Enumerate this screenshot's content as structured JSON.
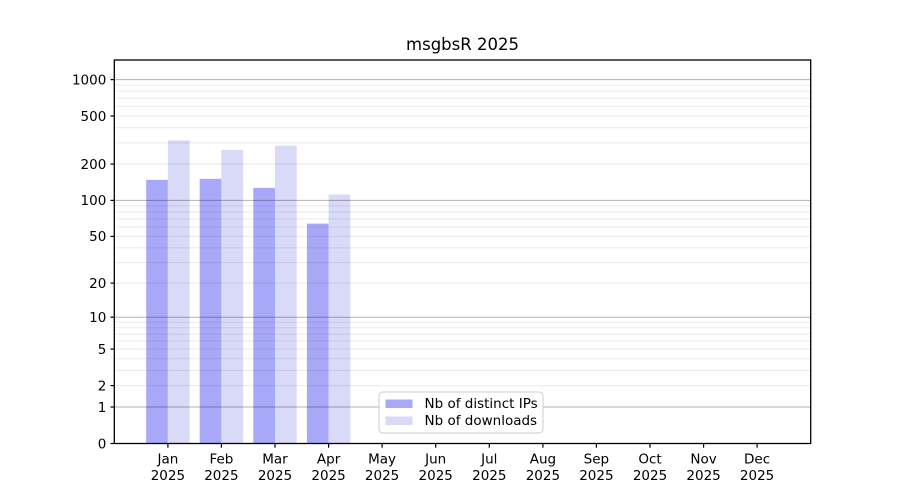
{
  "title": "msgbsR 2025",
  "chart_data": {
    "type": "bar",
    "title": "msgbsR 2025",
    "yscale": "log1p",
    "ymax": 1450,
    "yticks": [
      0,
      1,
      2,
      5,
      10,
      20,
      50,
      100,
      200,
      500,
      1000
    ],
    "major_grid_values": [
      1,
      10,
      100,
      1000
    ],
    "categories": [
      "Jan",
      "Feb",
      "Mar",
      "Apr",
      "May",
      "Jun",
      "Jul",
      "Aug",
      "Sep",
      "Oct",
      "Nov",
      "Dec"
    ],
    "year_label": "2025",
    "series": [
      {
        "name": "Nb of distinct IPs",
        "color": "#a8a8f8",
        "values": [
          148,
          151,
          127,
          64,
          0,
          0,
          0,
          0,
          0,
          0,
          0,
          0
        ]
      },
      {
        "name": "Nb of downloads",
        "color": "#d9d9f8",
        "values": [
          315,
          263,
          284,
          112,
          0,
          0,
          0,
          0,
          0,
          0,
          0,
          0
        ]
      }
    ],
    "legend_position": "inside-bottom-center",
    "grid": "horizontal only, log minor (light) + decade major (darker)"
  },
  "colors": {
    "bar_ips": "#a8a8f8",
    "bar_downloads": "#d9d9f8",
    "spine": "#000000",
    "grid_minor": "rgba(0,0,0,0.08)",
    "grid_major": "rgba(0,0,0,0.30)",
    "legend_border": "#cccccc",
    "legend_bg": "rgba(255,255,255,0.9)",
    "text": "#000000"
  },
  "legend": {
    "items": [
      {
        "label": "Nb of distinct IPs",
        "swatch": "#a8a8f8"
      },
      {
        "label": "Nb of downloads",
        "swatch": "#d9d9f8"
      }
    ]
  }
}
